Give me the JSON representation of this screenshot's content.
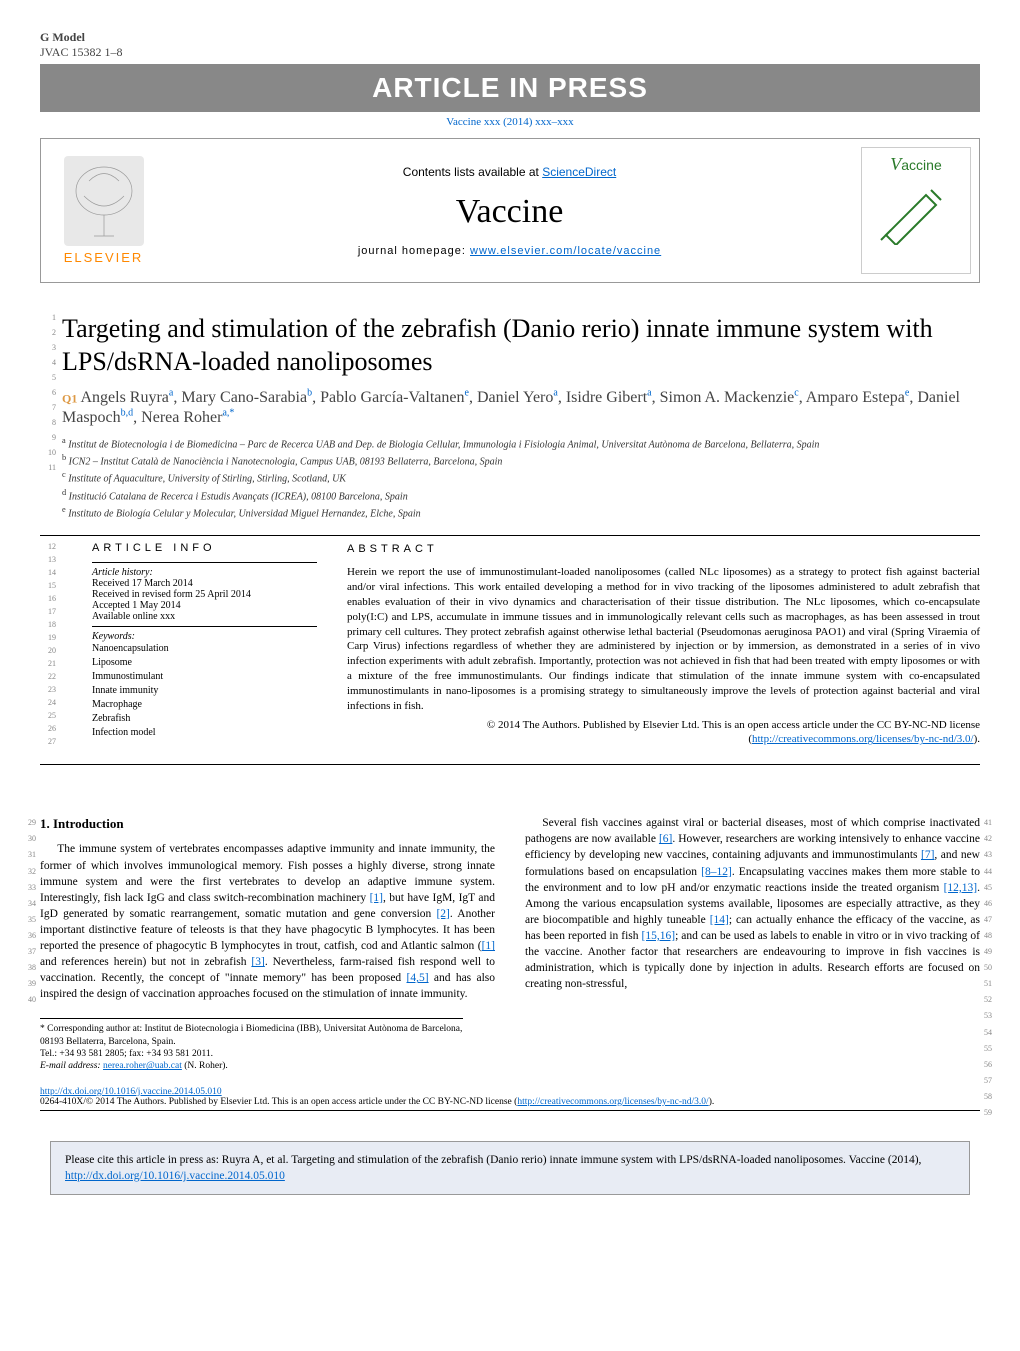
{
  "header": {
    "gmodel": "G Model",
    "jvac": "JVAC 15382 1–8",
    "aip": "ARTICLE IN PRESS",
    "vaccine_line": "Vaccine xxx (2014) xxx–xxx"
  },
  "journal_box": {
    "elsevier": "ELSEVIER",
    "contents": "Contents lists available at ",
    "sciencedirect": "ScienceDirect",
    "name": "Vaccine",
    "homepage_label": "journal homepage: ",
    "homepage_url": "www.elsevier.com/locate/vaccine",
    "cover_text": "accine"
  },
  "title": "Targeting and stimulation of the zebrafish (Danio rerio) innate immune system with LPS/dsRNA-loaded nanoliposomes",
  "q1": "Q1",
  "authors_html": "Angels Ruyra<sup>a</sup>, Mary Cano-Sarabia<sup>b</sup>, Pablo García-Valtanen<sup>e</sup>, Daniel Yero<sup>a</sup>, Isidre Gibert<sup>a</sup>, Simon A. Mackenzie<sup>c</sup>, Amparo Estepa<sup>e</sup>, Daniel Maspoch<sup>b,d</sup>, Nerea Roher<sup>a,*</sup>",
  "affiliations": [
    "a Institut de Biotecnologia i de Biomedicina – Parc de Recerca UAB and Dep. de Biologia Cellular, Immunologia i Fisiologia Animal, Universitat Autònoma de Barcelona, Bellaterra, Spain",
    "b ICN2 – Institut Català de Nanociència i Nanotecnologia, Campus UAB, 08193 Bellaterra, Barcelona, Spain",
    "c Institute of Aquaculture, University of Stirling, Stirling, Scotland, UK",
    "d Institució Catalana de Recerca i Estudis Avançats (ICREA), 08100 Barcelona, Spain",
    "e Instituto de Biología Celular y Molecular, Universidad Miguel Hernandez, Elche, Spain"
  ],
  "article_info": {
    "head": "ARTICLE INFO",
    "history_label": "Article history:",
    "history": [
      "Received 17 March 2014",
      "Received in revised form 25 April 2014",
      "Accepted 1 May 2014",
      "Available online xxx"
    ],
    "keywords_label": "Keywords:",
    "keywords": [
      "Nanoencapsulation",
      "Liposome",
      "Immunostimulant",
      "Innate immunity",
      "Macrophage",
      "Zebrafish",
      "Infection model"
    ]
  },
  "abstract": {
    "head": "ABSTRACT",
    "body": "Herein we report the use of immunostimulant-loaded nanoliposomes (called NLc liposomes) as a strategy to protect fish against bacterial and/or viral infections. This work entailed developing a method for in vivo tracking of the liposomes administered to adult zebrafish that enables evaluation of their in vivo dynamics and characterisation of their tissue distribution. The NLc liposomes, which co-encapsulate poly(I:C) and LPS, accumulate in immune tissues and in immunologically relevant cells such as macrophages, as has been assessed in trout primary cell cultures. They protect zebrafish against otherwise lethal bacterial (Pseudomonas aeruginosa PAO1) and viral (Spring Viraemia of Carp Virus) infections regardless of whether they are administered by injection or by immersion, as demonstrated in a series of in vivo infection experiments with adult zebrafish. Importantly, protection was not achieved in fish that had been treated with empty liposomes or with a mixture of the free immunostimulants. Our findings indicate that stimulation of the innate immune system with co-encapsulated immunostimulants in nano-liposomes is a promising strategy to simultaneously improve the levels of protection against bacterial and viral infections in fish.",
    "copyright": "© 2014 The Authors. Published by Elsevier Ltd. This is an open access article under the CC BY-NC-ND license (",
    "license_url": "http://creativecommons.org/licenses/by-nc-nd/3.0/",
    "license_close": ")."
  },
  "intro": {
    "head": "1. Introduction",
    "p1a": "The immune system of vertebrates encompasses adaptive immunity and innate immunity, the former of which involves immunological memory. Fish posses a highly diverse, strong innate immune system and were the first vertebrates to develop an adaptive immune system. Interestingly, fish lack IgG and class switch-recombination machinery ",
    "r1": "[1]",
    "p1b": ", but have IgM, IgT and IgD generated by somatic rearrangement, somatic mutation and gene conversion ",
    "r2": "[2]",
    "p1c": ". Another important distinctive feature of teleosts is that they have phagocytic B lymphocytes. It has been reported the presence of phagocytic B lymphocytes in trout, catfish, cod and Atlantic salmon (",
    "r1b": "[1]",
    "p1d": " and references herein) but not in zebrafish ",
    "r3": "[3]",
    "p1e": ". Nevertheless, farm-raised fish respond well to vaccination. Recently, the concept of \"innate memory\" has been proposed ",
    "r45": "[4,5]",
    "p1f": " and has also inspired the design of vaccination approaches focused on the stimulation of innate immunity.",
    "p2a": "Several fish vaccines against viral or bacterial diseases, most of which comprise inactivated pathogens are now available ",
    "r6": "[6]",
    "p2b": ". However, researchers are working intensively to enhance vaccine efficiency by developing new vaccines, containing adjuvants and immunostimulants ",
    "r7": "[7]",
    "p2c": ", and new formulations based on encapsulation ",
    "r812": "[8–12]",
    "p2d": ". Encapsulating vaccines makes them more stable to the environment and to low pH and/or enzymatic reactions inside the treated organism ",
    "r1213": "[12,13]",
    "p2e": ". Among the various encapsulation systems available, liposomes are especially attractive, as they are biocompatible and highly tuneable ",
    "r14": "[14]",
    "p2f": "; can actually enhance the efficacy of the vaccine, as has been reported in fish ",
    "r1516": "[15,16]",
    "p2g": "; and can be used as labels to enable in vitro or in vivo tracking of the vaccine. Another factor that researchers are endeavouring to improve in fish vaccines is administration, which is typically done by injection in adults. Research efforts are focused on creating non-stressful,"
  },
  "corr": {
    "star": "* Corresponding author at: Institut de Biotecnologia i Biomedicina (IBB), Universitat Autònoma de Barcelona, 08193 Bellaterra, Barcelona, Spain.",
    "tel": "Tel.: +34 93 581 2805; fax: +34 93 581 2011.",
    "email_label": "E-mail address: ",
    "email": "nerea.roher@uab.cat",
    "email_after": " (N. Roher)."
  },
  "doi": {
    "url": "http://dx.doi.org/10.1016/j.vaccine.2014.05.010",
    "line": "0264-410X/© 2014 The Authors. Published by Elsevier Ltd. This is an open access article under the CC BY-NC-ND license (",
    "lic": "http://creativecommons.org/licenses/by-nc-nd/3.0/",
    "close": ")."
  },
  "cite_box": {
    "text": "Please cite this article in press as: Ruyra A, et al. Targeting and stimulation of the zebrafish (Danio rerio) innate immune system with LPS/dsRNA-loaded nanoliposomes. Vaccine (2014), ",
    "url": "http://dx.doi.org/10.1016/j.vaccine.2014.05.010"
  },
  "line_numbers": {
    "title_left": [
      "1",
      "2",
      "3",
      "4",
      "5",
      "6",
      "7",
      "8",
      "9",
      "10",
      "11"
    ],
    "info_left": [
      "12",
      "13",
      "14",
      "15",
      "16",
      "17",
      "18",
      "19",
      "20",
      "21",
      "22",
      "23",
      "24",
      "25",
      "26",
      "27"
    ],
    "intro_left": [
      "29",
      "30",
      "31",
      "32",
      "33",
      "34",
      "35",
      "36",
      "37",
      "38",
      "39",
      "40"
    ],
    "intro_right": [
      "41",
      "42",
      "43",
      "44",
      "45",
      "46",
      "47",
      "48",
      "49",
      "50",
      "51",
      "52",
      "53",
      "54",
      "55",
      "56",
      "57",
      "58",
      "59"
    ]
  },
  "colors": {
    "link": "#0066cc",
    "banner_bg": "#888888",
    "elsevier": "#ff8800",
    "cite_bg": "#e8ecf4"
  }
}
